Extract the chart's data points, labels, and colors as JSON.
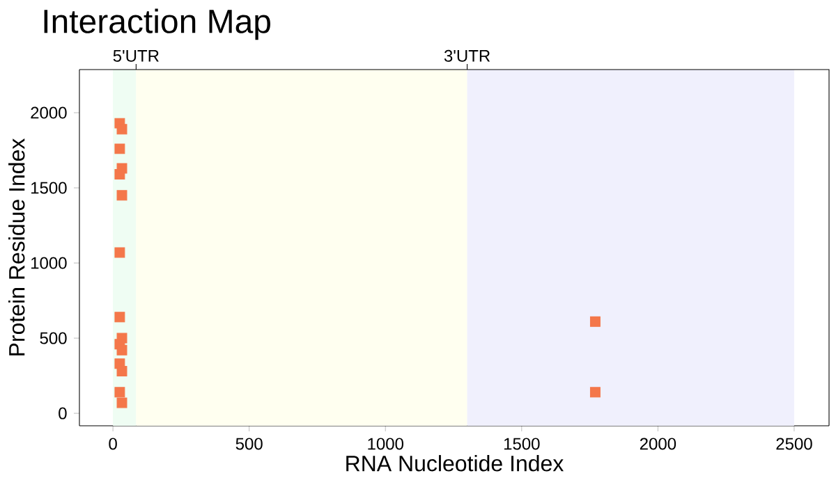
{
  "chart_data": {
    "type": "scatter",
    "title": "Interaction Map",
    "xlabel": "RNA Nucleotide Index",
    "ylabel": "Protein Residue Index",
    "xlim": [
      -123,
      2628
    ],
    "ylim": [
      -83,
      2287
    ],
    "xticks": [
      0,
      500,
      1000,
      1500,
      2000,
      2500
    ],
    "yticks": [
      0,
      500,
      1000,
      1500,
      2000
    ],
    "annotations": [
      "5'UTR",
      "3'UTR"
    ],
    "marker": "square",
    "grid": false,
    "bands": [
      {
        "axis": "x",
        "from": 0,
        "to": 85,
        "color": "#effdf3"
      },
      {
        "axis": "x",
        "from": 85,
        "to": 1300,
        "color": "#fffff0"
      },
      {
        "axis": "x",
        "from": 1300,
        "to": 2500,
        "color": "#f0f0fd"
      }
    ],
    "series": [
      {
        "color": "#f4774a",
        "x": [
          25,
          33,
          25,
          33,
          25,
          33,
          25,
          25,
          33,
          25,
          33,
          25,
          33,
          25,
          33,
          1770,
          1770
        ],
        "values": [
          1930,
          1890,
          1760,
          1630,
          1590,
          1450,
          1070,
          640,
          500,
          460,
          420,
          330,
          280,
          140,
          70,
          610,
          140
        ]
      }
    ]
  }
}
